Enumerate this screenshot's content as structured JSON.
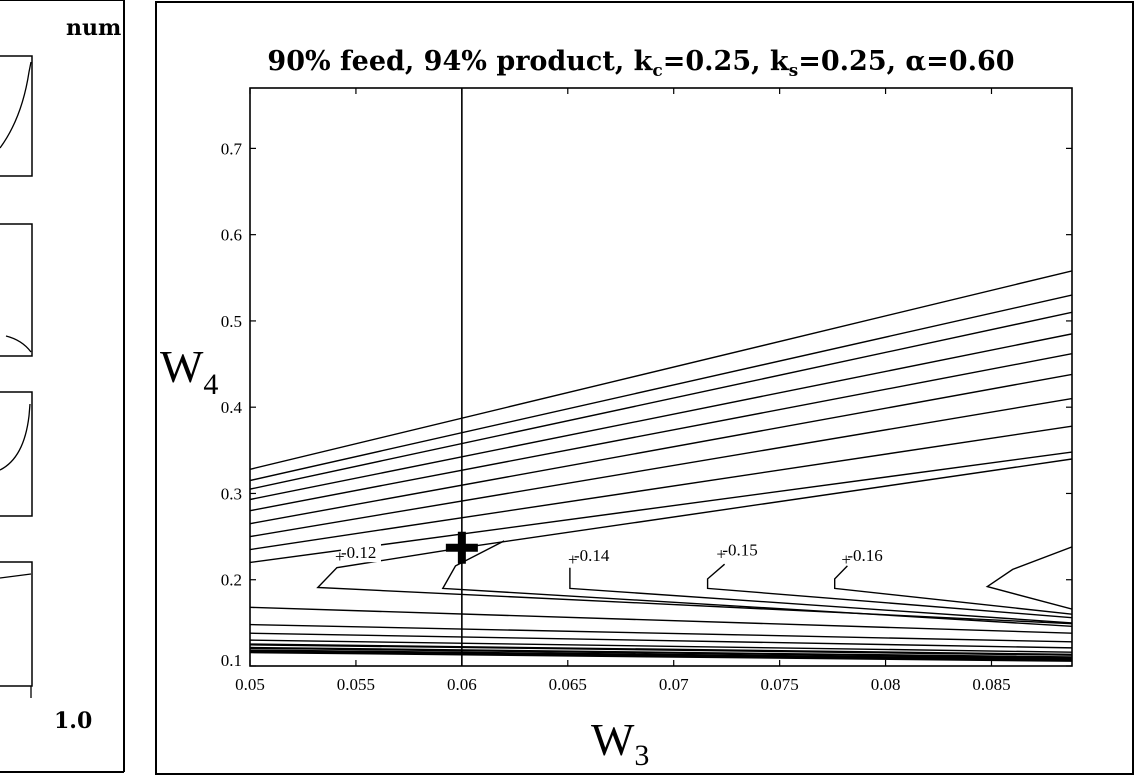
{
  "left_panel": {
    "header_fragment": "num",
    "bottom_tick": "1.0"
  },
  "chart_data": {
    "type": "contour",
    "title": {
      "prefix": "90% feed, 94% product, ",
      "kc_label": "k",
      "kc_sub": "c",
      "kc_value": "=0.25, ",
      "ks_label": "k",
      "ks_sub": "s",
      "ks_value": "=0.25, ",
      "alpha": "α=0.60"
    },
    "xlabel": {
      "main": "W",
      "sub": "3"
    },
    "ylabel": {
      "main": "W",
      "sub": "4"
    },
    "xlim": [
      0.05,
      0.0888
    ],
    "ylim": [
      0.1,
      0.77
    ],
    "xticks": [
      {
        "v": 0.05,
        "label": "0.05"
      },
      {
        "v": 0.055,
        "label": "0.055"
      },
      {
        "v": 0.06,
        "label": "0.06"
      },
      {
        "v": 0.065,
        "label": "0.065"
      },
      {
        "v": 0.07,
        "label": "0.07"
      },
      {
        "v": 0.075,
        "label": "0.075"
      },
      {
        "v": 0.08,
        "label": "0.08"
      },
      {
        "v": 0.085,
        "label": "0.085"
      }
    ],
    "yticks": [
      {
        "v": 0.1,
        "label": "0.1"
      },
      {
        "v": 0.2,
        "label": "0.2"
      },
      {
        "v": 0.3,
        "label": "0.3"
      },
      {
        "v": 0.4,
        "label": "0.4"
      },
      {
        "v": 0.5,
        "label": "0.5"
      },
      {
        "v": 0.6,
        "label": "0.6"
      },
      {
        "v": 0.7,
        "label": "0.7"
      }
    ],
    "vertical_line_x": 0.06,
    "marker": {
      "x": 0.06,
      "y": 0.237,
      "symbol": "plus"
    },
    "upper_lines": [
      [
        0.328,
        0.558
      ],
      [
        0.315,
        0.53
      ],
      [
        0.305,
        0.51
      ],
      [
        0.293,
        0.485
      ],
      [
        0.28,
        0.462
      ],
      [
        0.265,
        0.438
      ],
      [
        0.25,
        0.41
      ],
      [
        0.235,
        0.378
      ],
      [
        0.22,
        0.348
      ]
    ],
    "lower_lines": [
      [
        0.168,
        0.138
      ],
      [
        0.148,
        0.128
      ],
      [
        0.138,
        0.121
      ],
      [
        0.13,
        0.116
      ],
      [
        0.125,
        0.113
      ],
      [
        0.121,
        0.11
      ],
      [
        0.118,
        0.108
      ],
      [
        0.116,
        0.106
      ]
    ],
    "chevrons": [
      {
        "label": "-0.12",
        "label_at": [
          0.0542,
          0.225
        ],
        "points": [
          [
            0.0888,
            0.34
          ],
          [
            0.06,
            0.237
          ],
          [
            0.0541,
            0.214
          ],
          [
            0.0532,
            0.191
          ],
          [
            0.0888,
            0.149
          ]
        ]
      },
      {
        "label": "",
        "label_at": null,
        "points": [
          [
            0.062,
            0.245
          ],
          [
            0.0597,
            0.216
          ],
          [
            0.0591,
            0.19
          ],
          [
            0.0888,
            0.146
          ]
        ]
      },
      {
        "label": "-0.14",
        "label_at": [
          0.0652,
          0.222
        ],
        "points": [
          [
            0.0651,
            0.214
          ],
          [
            0.0651,
            0.19
          ],
          [
            0.0888,
            0.15
          ]
        ]
      },
      {
        "label": "-0.15",
        "label_at": [
          0.0722,
          0.228
        ],
        "points": [
          [
            0.0724,
            0.218
          ],
          [
            0.0716,
            0.201
          ],
          [
            0.0716,
            0.19
          ],
          [
            0.0888,
            0.156
          ]
        ]
      },
      {
        "label": "-0.16",
        "label_at": [
          0.0781,
          0.222
        ],
        "points": [
          [
            0.0782,
            0.216
          ],
          [
            0.0776,
            0.201
          ],
          [
            0.0776,
            0.19
          ],
          [
            0.0888,
            0.16
          ]
        ]
      },
      {
        "label": "",
        "label_at": null,
        "points": [
          [
            0.0888,
            0.238
          ],
          [
            0.086,
            0.212
          ],
          [
            0.0848,
            0.192
          ],
          [
            0.0888,
            0.166
          ]
        ]
      }
    ]
  }
}
